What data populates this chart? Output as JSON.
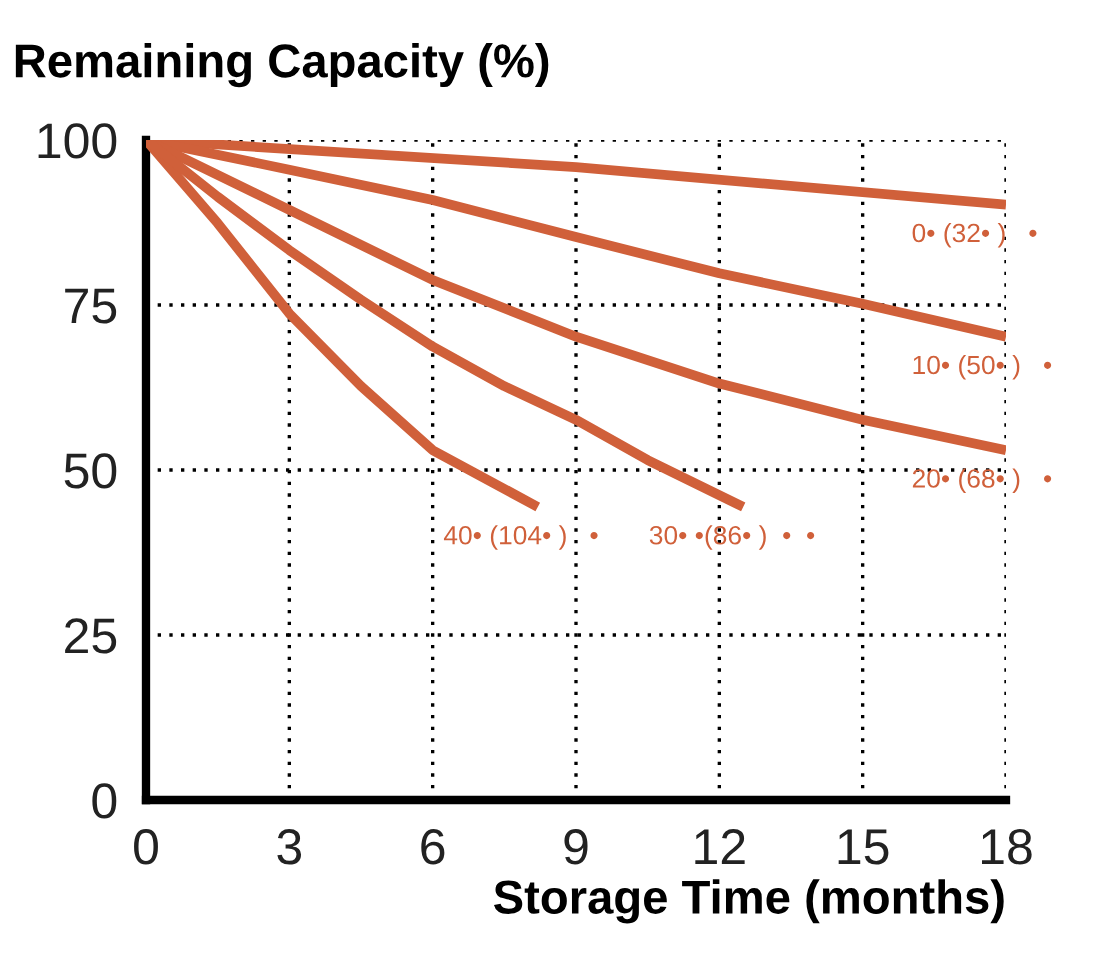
{
  "chart_data": {
    "type": "line",
    "ylabel": "Remaining Capacity (%)",
    "xlabel": "Storage Time (months)",
    "xlim": [
      0,
      18
    ],
    "ylim": [
      0,
      100
    ],
    "xticks": [
      0,
      3,
      6,
      9,
      12,
      15,
      18
    ],
    "yticks": [
      0,
      25,
      50,
      75,
      100
    ],
    "grid": true,
    "legend": false,
    "marker": "none",
    "line_style": "solid",
    "series": [
      {
        "name": "0• (32• )   •",
        "color": "#d0603a",
        "x": [
          0,
          9,
          18
        ],
        "values": [
          100,
          95.9,
          90.2
        ]
      },
      {
        "name": "10• (50• )   •",
        "color": "#d0603a",
        "x": [
          0,
          3,
          6,
          9,
          12,
          15,
          18
        ],
        "values": [
          100,
          95.5,
          90.9,
          85.3,
          79.8,
          75.2,
          70.2
        ]
      },
      {
        "name": "20• (68• )   •",
        "color": "#d0603a",
        "x": [
          0,
          3,
          6,
          9,
          12,
          15,
          18
        ],
        "values": [
          100,
          89.4,
          78.8,
          70.2,
          63.1,
          57.6,
          53
        ]
      },
      {
        "name": "40• (104• )   •",
        "color": "#d0603a",
        "x": [
          0,
          1.5,
          3,
          4.5,
          6,
          8.2
        ],
        "values": [
          100,
          87.4,
          73.7,
          62.7,
          53,
          44.4
        ]
      },
      {
        "name": "30• •(86• )  •  •",
        "color": "#d0603a",
        "x": [
          0,
          1.5,
          3,
          4.5,
          6,
          7.5,
          9,
          10.5,
          12.5
        ],
        "values": [
          100,
          91.4,
          83.3,
          75.8,
          68.7,
          62.7,
          57.6,
          51.5,
          44.4
        ]
      }
    ]
  }
}
